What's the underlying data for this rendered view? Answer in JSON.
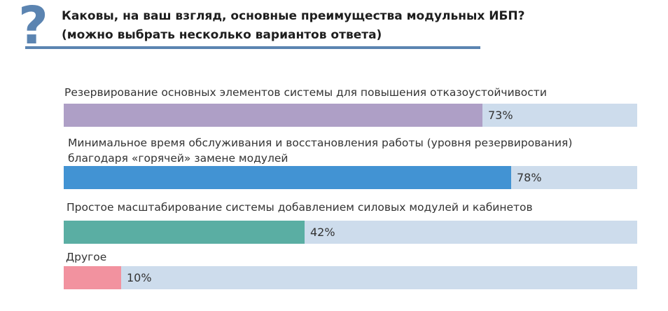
{
  "title": {
    "line1": "Каковы, на ваш взгляд, основные преимущества модульных ИБП?",
    "line2": "(можно выбрать несколько вариантов ответа)",
    "mark": "?"
  },
  "chart_data": {
    "type": "bar",
    "orientation": "horizontal",
    "xlim": [
      0,
      100
    ],
    "categories": [
      [
        "Резервирование основных элементов системы для повышения отказоустойчивости"
      ],
      [
        "Минимальное время обслуживания и восстановления работы (уровня резервирования)",
        "благодаря «горячей» замене модулей"
      ],
      [
        "Простое масштабирование системы добавлением силовых модулей и кабинетов"
      ],
      [
        "Другое"
      ]
    ],
    "values": [
      73,
      78,
      42,
      10
    ],
    "value_labels": [
      "73%",
      "78%",
      "42%",
      "10%"
    ],
    "colors": [
      "#ae9fc6",
      "#4293d3",
      "#5aaea3",
      "#f2929f"
    ],
    "track_color": "#cddcec"
  }
}
